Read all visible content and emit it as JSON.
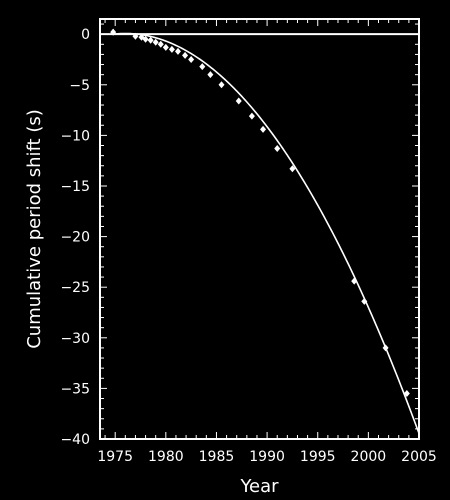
{
  "chart_data": {
    "type": "scatter",
    "xlabel": "Year",
    "ylabel": "Cumulative period shift (s)",
    "xlim": [
      1973.5,
      2005
    ],
    "ylim": [
      -40,
      1.5
    ],
    "xticks": [
      1975,
      1980,
      1985,
      1990,
      1995,
      2000,
      2005
    ],
    "yticks": [
      0,
      -5,
      -10,
      -15,
      -20,
      -25,
      -30,
      -35,
      -40
    ],
    "background": "#000000",
    "foreground": "#ffffff",
    "reference_line_y": 0,
    "curve": {
      "type": "quadratic",
      "x0": 1974.8,
      "values_by_year": [
        {
          "x": 1974.8,
          "y": 0
        },
        {
          "x": 1980,
          "y": -1.4
        },
        {
          "x": 1985,
          "y": -4.1
        },
        {
          "x": 1990,
          "y": -9.3
        },
        {
          "x": 1995,
          "y": -16.2
        },
        {
          "x": 2000,
          "y": -26.5
        },
        {
          "x": 2005,
          "y": -40
        }
      ]
    },
    "points": [
      {
        "x": 1974.8,
        "y": 0.2,
        "err": 0.3
      },
      {
        "x": 1977.0,
        "y": -0.2,
        "err": 0.2
      },
      {
        "x": 1977.6,
        "y": -0.3,
        "err": 0.15
      },
      {
        "x": 1978.0,
        "y": -0.5,
        "err": 0.2
      },
      {
        "x": 1978.5,
        "y": -0.6,
        "err": 0.2
      },
      {
        "x": 1979.0,
        "y": -0.8,
        "err": 0.15
      },
      {
        "x": 1979.5,
        "y": -1.0,
        "err": 0.1
      },
      {
        "x": 1980.0,
        "y": -1.3,
        "err": 0.1
      },
      {
        "x": 1980.6,
        "y": -1.5,
        "err": 0.1
      },
      {
        "x": 1981.2,
        "y": -1.7,
        "err": 0.1
      },
      {
        "x": 1981.9,
        "y": -2.1,
        "err": 0.1
      },
      {
        "x": 1982.5,
        "y": -2.5,
        "err": 0.1
      },
      {
        "x": 1983.6,
        "y": -3.2,
        "err": 0.1
      },
      {
        "x": 1984.4,
        "y": -4.0,
        "err": 0.1
      },
      {
        "x": 1985.5,
        "y": -5.0,
        "err": 0.1
      },
      {
        "x": 1987.2,
        "y": -6.6,
        "err": 0.1
      },
      {
        "x": 1988.5,
        "y": -8.1,
        "err": 0.1
      },
      {
        "x": 1989.6,
        "y": -9.4,
        "err": 0.1
      },
      {
        "x": 1991.0,
        "y": -11.3,
        "err": 0.1
      },
      {
        "x": 1992.5,
        "y": -13.3,
        "err": 0.1
      },
      {
        "x": 1998.6,
        "y": -24.4,
        "err": 0.15
      },
      {
        "x": 1999.6,
        "y": -26.4,
        "err": 0.15
      },
      {
        "x": 2001.7,
        "y": -31.0,
        "err": 0.15
      },
      {
        "x": 2003.8,
        "y": -35.5,
        "err": 0.15
      }
    ]
  }
}
